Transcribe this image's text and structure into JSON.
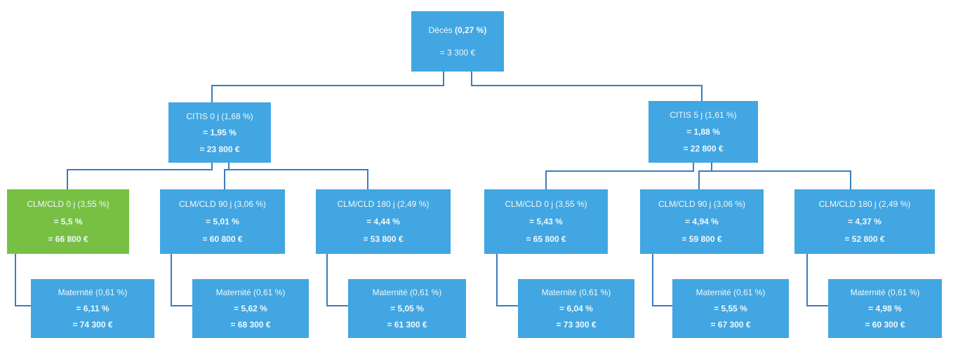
{
  "colors": {
    "node": "#41a6e1",
    "highlight": "#77c043",
    "connector": "#3a7dbf",
    "text": "#f2f8fc"
  },
  "root": {
    "label": "Décès",
    "rate": "(0,27 %)",
    "value": "= 3 300 €"
  },
  "branches": [
    {
      "label": "CITIS 0 j (1,68 %)",
      "pct": "= 1,95 %",
      "value": "= 23 800 €",
      "children": [
        {
          "label": "CLM/CLD 0 j (3,55 %)",
          "pct": "= 5,5 %",
          "value": "= 66 800 €",
          "leaf": {
            "label": "Maternité (0,61 %)",
            "pct": "= 6,11 %",
            "value": "= 74 300 €"
          }
        },
        {
          "label": "CLM/CLD 90 j (3,06 %)",
          "pct": "= 5,01 %",
          "value": "= 60 800 €",
          "leaf": {
            "label": "Maternité (0,61 %)",
            "pct": "= 5,62 %",
            "value": "= 68 300 €"
          }
        },
        {
          "label": "CLM/CLD 180 j (2,49 %)",
          "pct": "= 4,44 %",
          "value": "= 53 800 €",
          "leaf": {
            "label": "Maternité (0,61 %)",
            "pct": "= 5,05 %",
            "value": "= 61 300 €"
          }
        }
      ]
    },
    {
      "label": "CITIS 5 j (1,61 %)",
      "pct": "= 1,88 %",
      "value": "= 22 800 €",
      "children": [
        {
          "label": "CLM/CLD 0 j (3,55 %)",
          "pct": "= 5,43 %",
          "value": "= 65 800 €",
          "leaf": {
            "label": "Maternité (0,61 %)",
            "pct": "= 6,04 %",
            "value": "= 73 300 €"
          }
        },
        {
          "label": "CLM/CLD 90 j (3,06 %)",
          "pct": "= 4,94 %",
          "value": "= 59 800 €",
          "leaf": {
            "label": "Maternité (0,61 %)",
            "pct": "= 5,55 %",
            "value": "= 67 300 €"
          }
        },
        {
          "label": "CLM/CLD 180 j (2,49 %)",
          "pct": "= 4,37 %",
          "value": "= 52 800 €",
          "leaf": {
            "label": "Maternité (0,61 %)",
            "pct": "= 4,98 %",
            "value": "= 60 300 €"
          }
        }
      ]
    }
  ]
}
